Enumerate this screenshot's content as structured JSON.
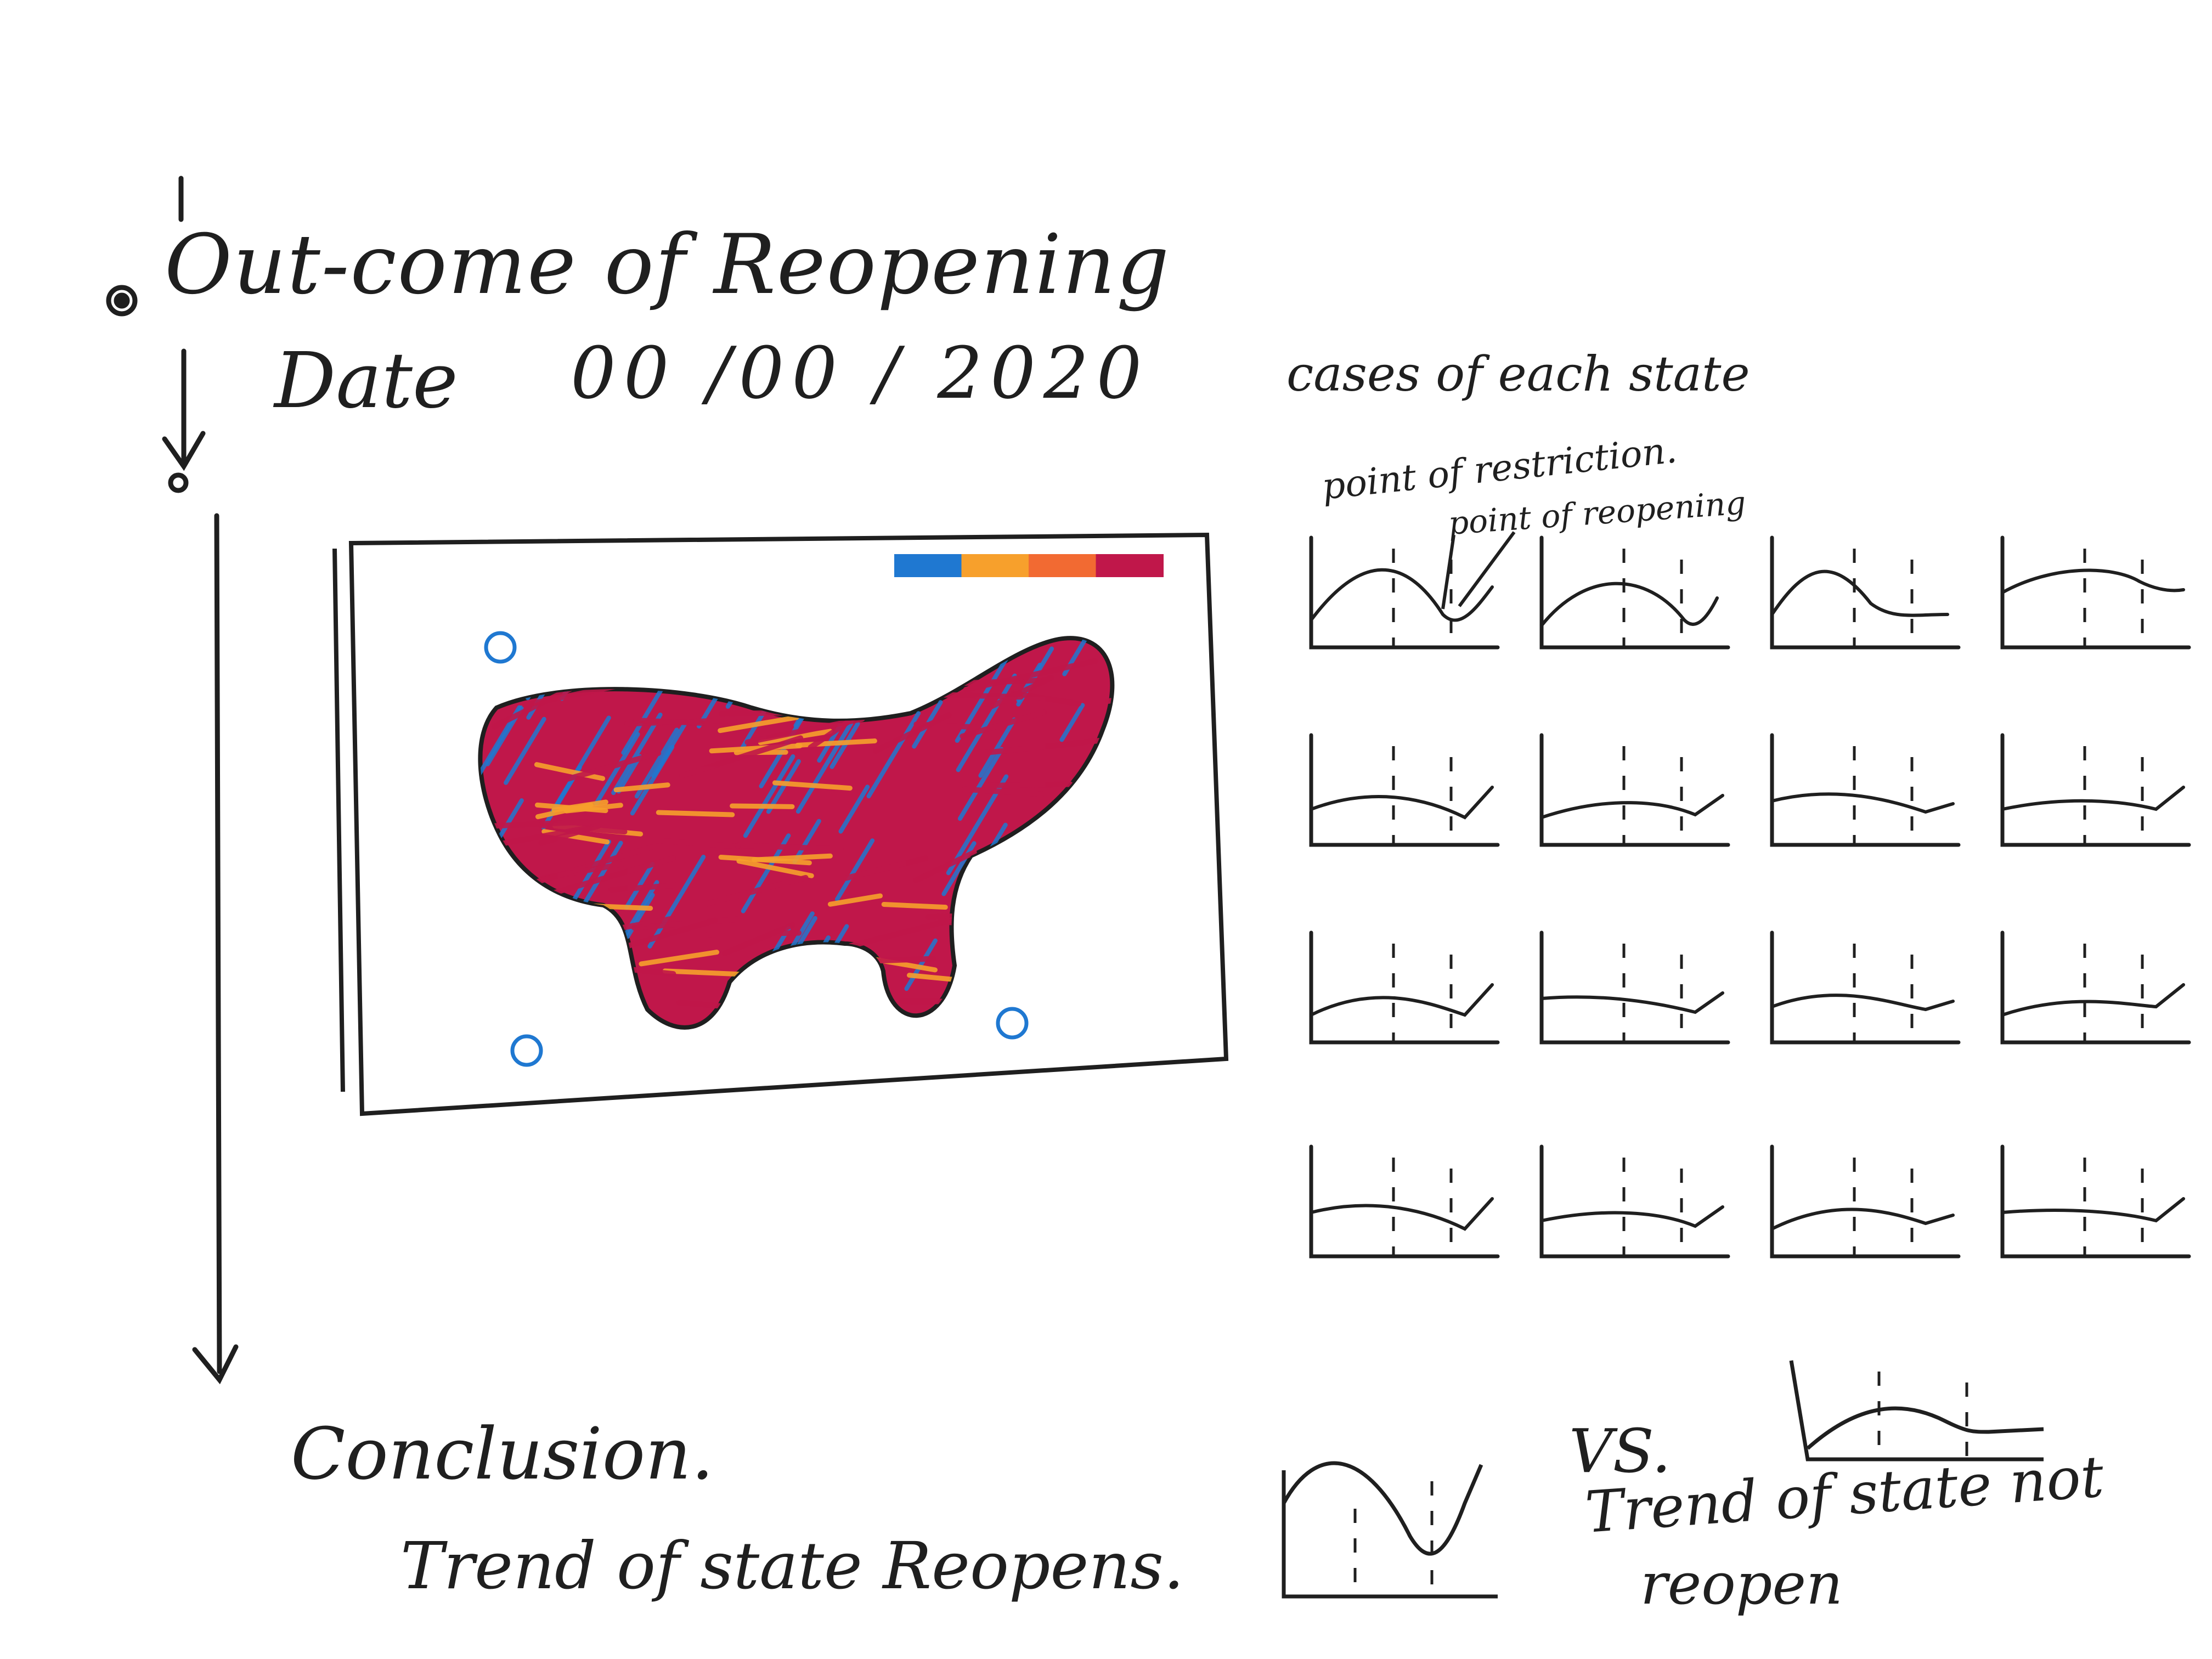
{
  "timeline": {
    "title": "Out-come of Reopening",
    "date_label": "Date",
    "date_value": "00 /00 / 2020"
  },
  "map_panel": {
    "legend_colors": [
      "#1f78d1",
      "#f7a02c",
      "#f26a32",
      "#c0174a"
    ],
    "fill_colors": {
      "base": "#c0174a",
      "secondary": "#1f78d1",
      "accent": "#f7a02c"
    }
  },
  "small_multiples": {
    "title": "cases of each state",
    "annotation_restriction": "point of restriction.",
    "annotation_reopening": "point of reopening",
    "rows": 4,
    "columns": 4
  },
  "conclusion": {
    "heading": "Conclusion.",
    "trend_reopens": "Trend of state Reopens.",
    "vs": "VS.",
    "trend_not_reopen_line1": "Trend of state not",
    "trend_not_reopen_line2": "reopen"
  },
  "colors": {
    "ink": "#1f1f1f",
    "background": "#ffffff"
  }
}
